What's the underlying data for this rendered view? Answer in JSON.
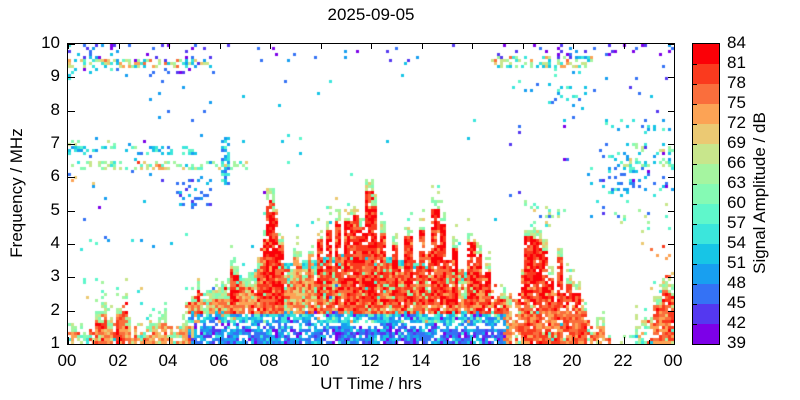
{
  "chart_data": {
    "type": "heatmap",
    "title": "2025-09-05",
    "xlabel": "UT Time / hrs",
    "ylabel": "Frequency / MHz",
    "xlim": [
      0,
      24
    ],
    "ylim": [
      1,
      10
    ],
    "xtick_hours": [
      0,
      2,
      4,
      6,
      8,
      10,
      12,
      14,
      16,
      18,
      20,
      22,
      24
    ],
    "xtick_labels": [
      "00",
      "02",
      "04",
      "06",
      "08",
      "10",
      "12",
      "14",
      "16",
      "18",
      "20",
      "22",
      "00"
    ],
    "xminor_hours": [
      1,
      3,
      5,
      7,
      9,
      11,
      13,
      15,
      17,
      19,
      21,
      23
    ],
    "ytick_values": [
      1,
      2,
      3,
      4,
      5,
      6,
      7,
      8,
      9,
      10
    ],
    "grid": false,
    "colorbar": {
      "label": "Signal Amplitude / dB",
      "min": 39,
      "max": 84,
      "step": 3,
      "tick_labels": [
        84,
        81,
        78,
        75,
        72,
        69,
        66,
        63,
        60,
        57,
        54,
        51,
        48,
        45,
        42,
        39
      ],
      "colors_low_to_high": [
        "#7D00E8",
        "#5438F0",
        "#3472F5",
        "#189FF0",
        "#17C5E6",
        "#3BE6DC",
        "#5FF7CB",
        "#85FAB4",
        "#A5F5A0",
        "#C8E68C",
        "#EBC973",
        "#FCA355",
        "#FA6E3C",
        "#FA3A1E",
        "#FB0007"
      ]
    },
    "seed": 42,
    "palettes": {
      "red": [
        [
          14,
          5
        ],
        [
          13,
          3
        ],
        [
          12,
          2
        ]
      ],
      "redEdge": [
        [
          12,
          3
        ],
        [
          13,
          3
        ],
        [
          11,
          2
        ],
        [
          14,
          1
        ]
      ],
      "orange": [
        [
          11,
          4
        ],
        [
          12,
          3
        ],
        [
          10,
          2
        ],
        [
          13,
          1
        ]
      ],
      "tan": [
        [
          9,
          4
        ],
        [
          8,
          3
        ],
        [
          10,
          3
        ],
        [
          7,
          2
        ],
        [
          6,
          1
        ],
        [
          11,
          1
        ]
      ],
      "tanHot": [
        [
          12,
          4
        ],
        [
          13,
          3
        ],
        [
          11,
          3
        ],
        [
          10,
          2
        ],
        [
          9,
          2
        ],
        [
          14,
          1
        ]
      ],
      "mound": [
        [
          8,
          4
        ],
        [
          7,
          4
        ],
        [
          9,
          3
        ],
        [
          6,
          2
        ],
        [
          10,
          1.5
        ],
        [
          5,
          1
        ],
        [
          11,
          0.8
        ],
        [
          2,
          0.5
        ]
      ],
      "arc": [
        [
          5,
          4
        ],
        [
          4,
          3
        ],
        [
          6,
          3
        ],
        [
          7,
          1
        ]
      ],
      "cyanBand": [
        [
          4,
          4
        ],
        [
          5,
          4
        ],
        [
          3,
          3
        ],
        [
          6,
          2
        ],
        [
          2,
          2
        ],
        [
          8,
          1
        ],
        [
          0,
          0.6
        ],
        [
          11,
          0.6
        ]
      ],
      "bottomDay": [
        [
          2,
          5
        ],
        [
          3,
          4
        ],
        [
          1,
          3
        ],
        [
          4,
          3
        ],
        [
          0,
          2
        ],
        [
          5,
          1
        ]
      ],
      "night": [
        [
          7,
          3
        ],
        [
          8,
          3
        ],
        [
          6,
          2
        ],
        [
          9,
          2
        ],
        [
          5,
          2
        ],
        [
          11,
          1
        ],
        [
          4,
          1
        ]
      ],
      "greens": [
        [
          8,
          3
        ],
        [
          9,
          3
        ],
        [
          7,
          2
        ],
        [
          6,
          2
        ],
        [
          10,
          1
        ],
        [
          5,
          1
        ]
      ],
      "greensTop": [
        [
          8,
          3
        ],
        [
          9,
          2
        ],
        [
          7,
          2
        ],
        [
          10,
          1
        ]
      ],
      "nBlue": [
        [
          2,
          5
        ],
        [
          3,
          3
        ],
        [
          1,
          2
        ],
        [
          4,
          2
        ],
        [
          0,
          1
        ]
      ],
      "nBluePurple": [
        [
          2,
          3
        ],
        [
          0,
          3
        ],
        [
          1,
          3
        ],
        [
          3,
          1
        ]
      ],
      "nCyan": [
        [
          4,
          4
        ],
        [
          5,
          3
        ],
        [
          3,
          2
        ],
        [
          6,
          2
        ],
        [
          2,
          1
        ]
      ],
      "mix95": [
        [
          9,
          3
        ],
        [
          8,
          2
        ],
        [
          11,
          2
        ],
        [
          5,
          2
        ],
        [
          4,
          2
        ],
        [
          12,
          1
        ],
        [
          10,
          1
        ],
        [
          3,
          1
        ]
      ],
      "purple": [
        [
          0,
          3
        ],
        [
          1,
          2
        ]
      ],
      "blueLine": [
        [
          3,
          3
        ],
        [
          4,
          3
        ],
        [
          2,
          2
        ],
        [
          5,
          1
        ]
      ],
      "orangeBand": [
        [
          11,
          3
        ],
        [
          9,
          2
        ],
        [
          8,
          2
        ],
        [
          12,
          2
        ],
        [
          5,
          1
        ],
        [
          10,
          1
        ]
      ]
    },
    "echo_bands": [
      [
        0,
        4.7,
        1.0,
        1.3,
        0.55,
        "night"
      ],
      [
        0,
        4.7,
        1.3,
        1.62,
        0.16,
        "night"
      ],
      [
        0.2,
        4.7,
        1.62,
        3.0,
        0.018,
        "greens"
      ],
      [
        4.7,
        17.3,
        1.0,
        1.45,
        0.85,
        "bottomDay"
      ],
      [
        4.7,
        17.3,
        1.45,
        1.63,
        0.5,
        "bottomDay"
      ],
      [
        4.7,
        17.3,
        1.73,
        1.99,
        0.85,
        "cyanBand"
      ],
      [
        4.7,
        13.8,
        2.09,
        2.45,
        0.78,
        "tan"
      ],
      [
        13.8,
        17.3,
        2.09,
        2.45,
        0.8,
        "tanHot"
      ],
      [
        7.4,
        9.9,
        2.09,
        2.62,
        0.22,
        "orange"
      ],
      [
        17.3,
        20.6,
        1.0,
        1.45,
        0.5,
        "night"
      ],
      [
        17.3,
        20.6,
        1.5,
        1.67,
        0.45,
        "blueLine"
      ],
      [
        17.3,
        20.3,
        1.7,
        1.95,
        0.4,
        "orangeBand"
      ],
      [
        17.3,
        20.3,
        1.95,
        2.55,
        0.12,
        "orangeBand"
      ],
      [
        20.6,
        22.5,
        1.0,
        1.42,
        0.13,
        "greens"
      ],
      [
        22.5,
        24,
        1.0,
        1.52,
        0.5,
        "night"
      ],
      [
        22.5,
        24,
        1.52,
        2.2,
        0.28,
        "tan"
      ]
    ],
    "f_layer_mound": {
      "hours": [
        4.5,
        5,
        5.5,
        6,
        6.5,
        7,
        7.5,
        8,
        8.5,
        9,
        9.5,
        10,
        10.5,
        11,
        11.5,
        12,
        12.5,
        13,
        13.5,
        14,
        14.5,
        15,
        15.5,
        16,
        16.5,
        17,
        17.5
      ],
      "top_mhz": [
        1.8,
        2.3,
        2.6,
        2.85,
        3.0,
        3.1,
        3.25,
        3.35,
        3.4,
        3.45,
        3.5,
        3.6,
        3.65,
        3.7,
        3.7,
        3.65,
        3.6,
        3.55,
        3.5,
        3.45,
        3.4,
        3.3,
        3.2,
        3.0,
        2.7,
        2.3,
        2.0
      ],
      "base_mhz": 2.45,
      "density": 0.75,
      "arc_hours": [
        8.5,
        14.2
      ],
      "arc_depth_mhz": 0.17
    },
    "es_spikes": [
      [
        0.15,
        1.65,
        0.12,
        1
      ],
      [
        1.2,
        2.0,
        0.15,
        0
      ],
      [
        1.35,
        2.25,
        0.12,
        0
      ],
      [
        1.55,
        1.8,
        0.12,
        1
      ],
      [
        2.0,
        2.2,
        0.1,
        0
      ],
      [
        2.15,
        2.55,
        0.12,
        0
      ],
      [
        2.35,
        1.9,
        0.1,
        1
      ],
      [
        3.3,
        1.75,
        0.25,
        1
      ],
      [
        3.65,
        1.95,
        0.2,
        1
      ],
      [
        4.55,
        1.9,
        0.15,
        1
      ],
      [
        4.95,
        2.55,
        0.15,
        0
      ],
      [
        5.1,
        2.95,
        0.1,
        0
      ],
      [
        5.35,
        2.2,
        0.15,
        1
      ],
      [
        5.95,
        2.7,
        0.15,
        1
      ],
      [
        6.5,
        3.6,
        0.12,
        0
      ],
      [
        6.65,
        3.35,
        0.12,
        0
      ],
      [
        7.0,
        3.0,
        0.15,
        1
      ],
      [
        7.5,
        3.6,
        0.12,
        0
      ],
      [
        7.8,
        4.5,
        0.12,
        0
      ],
      [
        7.95,
        5.65,
        0.15,
        0
      ],
      [
        8.15,
        5.3,
        0.1,
        0
      ],
      [
        8.35,
        4.3,
        0.15,
        0
      ],
      [
        9.0,
        3.9,
        0.2,
        1
      ],
      [
        9.55,
        4.0,
        0.12,
        1
      ],
      [
        9.95,
        4.5,
        0.12,
        0
      ],
      [
        10.3,
        4.7,
        0.15,
        0
      ],
      [
        10.6,
        5.05,
        0.12,
        0
      ],
      [
        11.1,
        5.0,
        0.2,
        0
      ],
      [
        11.4,
        5.15,
        0.12,
        0
      ],
      [
        11.6,
        4.8,
        0.1,
        0
      ],
      [
        11.9,
        5.95,
        0.15,
        0
      ],
      [
        12.05,
        5.5,
        0.1,
        0
      ],
      [
        12.45,
        4.65,
        0.12,
        0
      ],
      [
        12.9,
        4.3,
        0.15,
        0
      ],
      [
        13.4,
        4.55,
        0.15,
        0
      ],
      [
        13.95,
        4.75,
        0.12,
        0
      ],
      [
        14.5,
        5.35,
        0.15,
        0
      ],
      [
        14.8,
        4.95,
        0.12,
        0
      ],
      [
        15.25,
        4.25,
        0.12,
        0
      ],
      [
        15.95,
        4.35,
        0.15,
        0
      ],
      [
        16.25,
        4.05,
        0.12,
        0
      ],
      [
        16.6,
        3.45,
        0.15,
        0
      ],
      [
        17.15,
        2.65,
        0.12,
        0
      ],
      [
        17.45,
        2.5,
        0.12,
        1
      ],
      [
        17.95,
        3.35,
        0.12,
        0
      ],
      [
        18.25,
        4.55,
        0.2,
        0
      ],
      [
        18.55,
        4.45,
        0.15,
        0
      ],
      [
        18.85,
        4.1,
        0.12,
        0
      ],
      [
        19.1,
        3.3,
        0.12,
        0
      ],
      [
        19.45,
        3.95,
        0.15,
        0
      ],
      [
        19.8,
        3.1,
        0.12,
        0
      ],
      [
        20.1,
        2.85,
        0.15,
        0
      ],
      [
        20.4,
        2.3,
        0.12,
        0
      ],
      [
        21.0,
        1.85,
        0.15,
        1
      ],
      [
        23.3,
        2.45,
        0.15,
        0
      ],
      [
        23.65,
        2.95,
        0.15,
        0
      ],
      [
        23.95,
        2.8,
        0.2,
        0
      ]
    ],
    "noise_zones": [
      [
        0,
        6.2,
        4.2,
        9.2,
        0.012,
        "nBlue"
      ],
      [
        0,
        5.6,
        9.2,
        10,
        0.09,
        "nBluePurple"
      ],
      [
        0,
        2.3,
        9.0,
        10,
        0.08,
        "nCyan"
      ],
      [
        0,
        5.6,
        9.38,
        9.58,
        0.42,
        "mix95"
      ],
      [
        0,
        5.0,
        6.72,
        6.92,
        0.24,
        "nCyan"
      ],
      [
        0,
        7.4,
        6.28,
        6.48,
        0.36,
        "greens"
      ],
      [
        2.6,
        3.7,
        6.28,
        6.48,
        0.3,
        "orange"
      ],
      [
        0,
        2.6,
        6.95,
        7.12,
        0.16,
        "greens"
      ],
      [
        0,
        1.0,
        5.85,
        6.3,
        0.12,
        "orange"
      ],
      [
        4.3,
        5.6,
        5.25,
        5.95,
        0.28,
        "nBlue"
      ],
      [
        6.1,
        6.32,
        5.9,
        7.2,
        0.6,
        "nCyan"
      ],
      [
        0,
        6.2,
        3.9,
        4.3,
        0.03,
        "nCyan"
      ],
      [
        6.2,
        17.3,
        9.55,
        10,
        0.02,
        "nBluePurple"
      ],
      [
        6.2,
        17.3,
        4.0,
        9.5,
        0.004,
        "nCyan"
      ],
      [
        7.6,
        10.7,
        5.55,
        5.7,
        0.09,
        "purple"
      ],
      [
        17.3,
        24,
        4.6,
        9.4,
        0.014,
        "nBlue"
      ],
      [
        16.6,
        20.7,
        9.4,
        9.62,
        0.42,
        "mix95"
      ],
      [
        17.0,
        24,
        9.62,
        10,
        0.1,
        "nBluePurple"
      ],
      [
        17.4,
        20.4,
        8.2,
        9.3,
        0.05,
        "nCyan"
      ],
      [
        21.3,
        23.8,
        7.5,
        7.72,
        0.22,
        "nCyan"
      ],
      [
        21.8,
        24,
        6.4,
        6.6,
        0.3,
        "greens"
      ],
      [
        22.3,
        24,
        6.85,
        7.05,
        0.28,
        "greens"
      ],
      [
        20.9,
        24,
        6.3,
        6.75,
        0.12,
        "nCyan"
      ],
      [
        20.8,
        24,
        5.5,
        6.25,
        0.12,
        "nBlue"
      ],
      [
        20.5,
        24,
        5.3,
        7.4,
        0.05,
        "nCyan"
      ],
      [
        21.5,
        24,
        4.3,
        5.25,
        0.05,
        "greens"
      ],
      [
        18.0,
        19.6,
        4.6,
        5.3,
        0.11,
        "greens"
      ],
      [
        22.6,
        24,
        2.6,
        4.2,
        0.03,
        "orange"
      ],
      [
        0,
        24,
        9.78,
        10,
        0.018,
        "purple"
      ]
    ]
  }
}
